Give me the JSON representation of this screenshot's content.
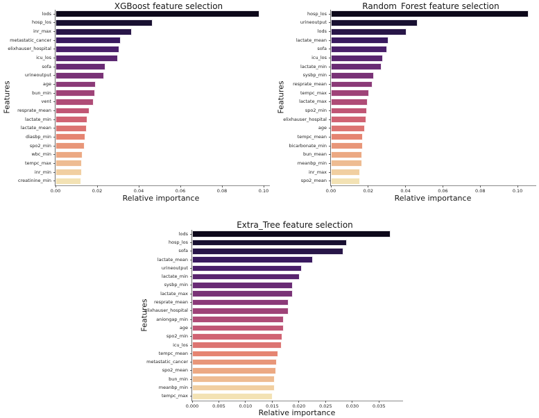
{
  "figure": {
    "background": "#ffffff",
    "text_color": "#161616"
  },
  "palette": [
    "#0d081a",
    "#181031",
    "#281648",
    "#391a5f",
    "#491f6a",
    "#59256f",
    "#692b74",
    "#793276",
    "#8b3a78",
    "#9e4378",
    "#af4c77",
    "#c05675",
    "#d06373",
    "#dc7472",
    "#e58471",
    "#e89679",
    "#eca983",
    "#eebc92",
    "#f1cfa1",
    "#f3e2b4"
  ],
  "chart_data": [
    {
      "type": "bar",
      "orientation": "horizontal",
      "title": "XGBoost feature selection",
      "xlabel": "Relative importance",
      "ylabel": "Features",
      "xlim": [
        0,
        0.103
      ],
      "grid": false,
      "legend": null,
      "xticks": {
        "values": [
          0,
          0.02,
          0.04,
          0.06,
          0.08,
          0.1
        ],
        "labels": [
          "0.00",
          "0.02",
          "0.04",
          "0.06",
          "0.08",
          "0.10"
        ]
      },
      "categories": [
        "lods",
        "hosp_los",
        "inr_max",
        "metastatic_cancer",
        "elixhauser_hospital",
        "icu_los",
        "sofa",
        "urineoutput",
        "age",
        "bun_min",
        "vent",
        "resprate_mean",
        "lactate_min",
        "lactate_mean",
        "diasbp_min",
        "spo2_min",
        "wbc_min",
        "tempc_max",
        "inr_min",
        "creatinine_min"
      ],
      "values": [
        0.098,
        0.0465,
        0.0367,
        0.0313,
        0.0308,
        0.0301,
        0.0239,
        0.0233,
        0.0194,
        0.019,
        0.0183,
        0.0163,
        0.0153,
        0.0149,
        0.0144,
        0.014,
        0.0131,
        0.0127,
        0.0126,
        0.0123
      ]
    },
    {
      "type": "bar",
      "orientation": "horizontal",
      "title": "Random_Forest feature selection",
      "xlabel": "Relative importance",
      "ylabel": "Features",
      "xlim": [
        0,
        0.11
      ],
      "grid": false,
      "legend": null,
      "xticks": {
        "values": [
          0,
          0.02,
          0.04,
          0.06,
          0.08,
          0.1
        ],
        "labels": [
          "0.00",
          "0.02",
          "0.04",
          "0.06",
          "0.08",
          "0.10"
        ]
      },
      "categories": [
        "hosp_los",
        "urineoutput",
        "lods",
        "lactate_mean",
        "sofa",
        "icu_los",
        "lactate_min",
        "sysbp_min",
        "resprate_mean",
        "tempc_max",
        "lactate_max",
        "spo2_min",
        "elixhauser_hospital",
        "age",
        "tempc_mean",
        "bicarbonate_min",
        "bun_mean",
        "meanbp_min",
        "inr_max",
        "spo2_mean"
      ],
      "values": [
        0.106,
        0.0465,
        0.0405,
        0.0309,
        0.0301,
        0.0279,
        0.0271,
        0.023,
        0.0223,
        0.0204,
        0.0196,
        0.0195,
        0.019,
        0.0182,
        0.0171,
        0.017,
        0.0167,
        0.0166,
        0.0157,
        0.0156
      ]
    },
    {
      "type": "bar",
      "orientation": "horizontal",
      "title": "Extra_Tree feature selection",
      "xlabel": "Relative importance",
      "ylabel": "Features",
      "xlim": [
        0,
        0.0395
      ],
      "grid": false,
      "legend": null,
      "xticks": {
        "values": [
          0,
          0.005,
          0.01,
          0.015,
          0.02,
          0.025,
          0.03,
          0.035
        ],
        "labels": [
          "0.000",
          "0.005",
          "0.010",
          "0.015",
          "0.020",
          "0.025",
          "0.030",
          "0.035"
        ]
      },
      "categories": [
        "lods",
        "hosp_los",
        "sofa",
        "lactate_mean",
        "urineoutput",
        "lactate_min",
        "sysbp_min",
        "lactate_max",
        "resprate_mean",
        "elixhauser_hospital",
        "aniongap_min",
        "age",
        "spo2_min",
        "icu_los",
        "tempc_mean",
        "metastatic_cancer",
        "spo2_mean",
        "bun_min",
        "meanbp_min",
        "tempc_max"
      ],
      "values": [
        0.0372,
        0.029,
        0.0283,
        0.0226,
        0.0205,
        0.0202,
        0.0189,
        0.0188,
        0.0181,
        0.018,
        0.0172,
        0.0171,
        0.0169,
        0.0168,
        0.0161,
        0.0158,
        0.0157,
        0.0155,
        0.0154,
        0.0151
      ]
    }
  ]
}
